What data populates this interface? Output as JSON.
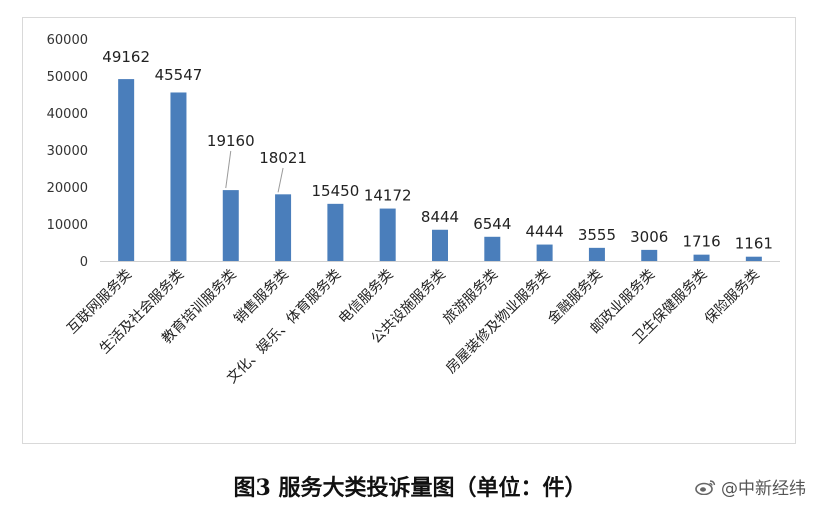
{
  "chart_data": {
    "type": "bar",
    "categories": [
      "互联网服务类",
      "生活及社会服务类",
      "教育培训服务类",
      "销售服务类",
      "文化、娱乐、体育服务类",
      "电信服务类",
      "公共设施服务类",
      "旅游服务类",
      "房屋装修及物业服务类",
      "金融服务类",
      "邮政业服务类",
      "卫生保健服务类",
      "保险服务类"
    ],
    "series": [
      {
        "values": [
          49162,
          45547,
          19160,
          18021,
          15450,
          14172,
          8444,
          6544,
          4444,
          3555,
          3006,
          1716,
          1161
        ]
      }
    ],
    "data_labels": [
      "49162",
      "45547",
      "19160",
      "18021",
      "15450",
      "14172",
      "8444",
      "6544",
      "4444",
      "3555",
      "3006",
      "1716",
      "1161"
    ],
    "ylim": [
      0,
      60000
    ],
    "yticks": [
      "0",
      "10000",
      "20000",
      "30000",
      "40000",
      "50000",
      "60000"
    ],
    "grid": false,
    "bar_color": "#4a7ebb"
  },
  "caption": "图3  服务大类投诉量图（单位：件）",
  "watermark": "@中新经纬",
  "watermark_icon": "weibo-icon"
}
